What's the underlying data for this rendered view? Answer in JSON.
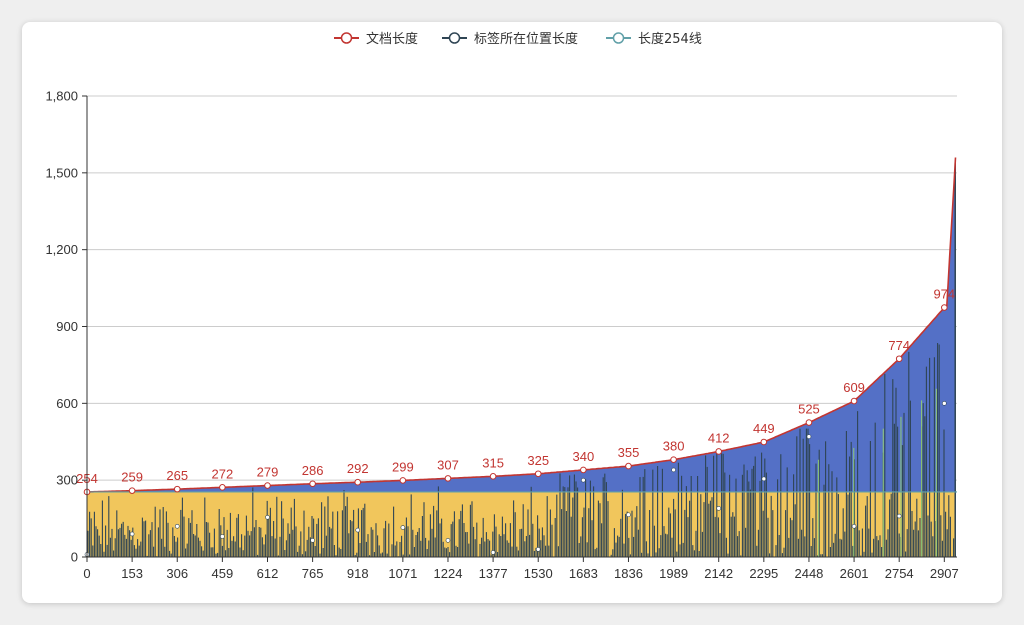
{
  "chart_data": {
    "type": "line",
    "legend_position": "top-center",
    "grid": true,
    "series": [
      {
        "name": "文档长度",
        "color": "#c23531"
      },
      {
        "name": "标签所在位置长度",
        "color": "#2f4554"
      },
      {
        "name": "长度254线",
        "color": "#61a0a8"
      }
    ],
    "x_ticks": [
      "0",
      "153",
      "306",
      "459",
      "612",
      "765",
      "918",
      "1071",
      "1224",
      "1377",
      "1530",
      "1683",
      "1836",
      "1989",
      "2142",
      "2295",
      "2448",
      "2601",
      "2754",
      "2907"
    ],
    "y_ticks": [
      "0",
      "300",
      "600",
      "900",
      "1,200",
      "1,500",
      "1,800"
    ],
    "ylim": [
      0,
      1800
    ],
    "xlim": [
      0,
      2950
    ],
    "reference_line_value": 254,
    "doc_length_points": [
      {
        "x": 0,
        "y": 254
      },
      {
        "x": 153,
        "y": 259
      },
      {
        "x": 306,
        "y": 265
      },
      {
        "x": 459,
        "y": 272
      },
      {
        "x": 612,
        "y": 279
      },
      {
        "x": 765,
        "y": 286
      },
      {
        "x": 918,
        "y": 292
      },
      {
        "x": 1071,
        "y": 299
      },
      {
        "x": 1224,
        "y": 307
      },
      {
        "x": 1377,
        "y": 315
      },
      {
        "x": 1530,
        "y": 325
      },
      {
        "x": 1683,
        "y": 340
      },
      {
        "x": 1836,
        "y": 355
      },
      {
        "x": 1989,
        "y": 380
      },
      {
        "x": 2142,
        "y": 412
      },
      {
        "x": 2295,
        "y": 449
      },
      {
        "x": 2448,
        "y": 525
      },
      {
        "x": 2601,
        "y": 609
      },
      {
        "x": 2754,
        "y": 774
      },
      {
        "x": 2907,
        "y": 974
      }
    ],
    "doc_length_labels": [
      "254",
      "259",
      "265",
      "272",
      "279",
      "286",
      "292",
      "299",
      "307",
      "315",
      "325",
      "340",
      "355",
      "380",
      "412",
      "449",
      "525",
      "609",
      "774",
      "974"
    ],
    "doc_length_max": 1560,
    "tag_position_points": [
      {
        "x": 0,
        "y": 10
      },
      {
        "x": 153,
        "y": 90
      },
      {
        "x": 306,
        "y": 120
      },
      {
        "x": 459,
        "y": 80
      },
      {
        "x": 612,
        "y": 155
      },
      {
        "x": 765,
        "y": 65
      },
      {
        "x": 918,
        "y": 105
      },
      {
        "x": 1071,
        "y": 115
      },
      {
        "x": 1224,
        "y": 65
      },
      {
        "x": 1377,
        "y": 18
      },
      {
        "x": 1530,
        "y": 30
      },
      {
        "x": 1683,
        "y": 300
      },
      {
        "x": 1836,
        "y": 165
      },
      {
        "x": 1989,
        "y": 340
      },
      {
        "x": 2142,
        "y": 190
      },
      {
        "x": 2295,
        "y": 305
      },
      {
        "x": 2448,
        "y": 470
      },
      {
        "x": 2601,
        "y": 120
      },
      {
        "x": 2754,
        "y": 160
      },
      {
        "x": 2907,
        "y": 600
      }
    ]
  }
}
